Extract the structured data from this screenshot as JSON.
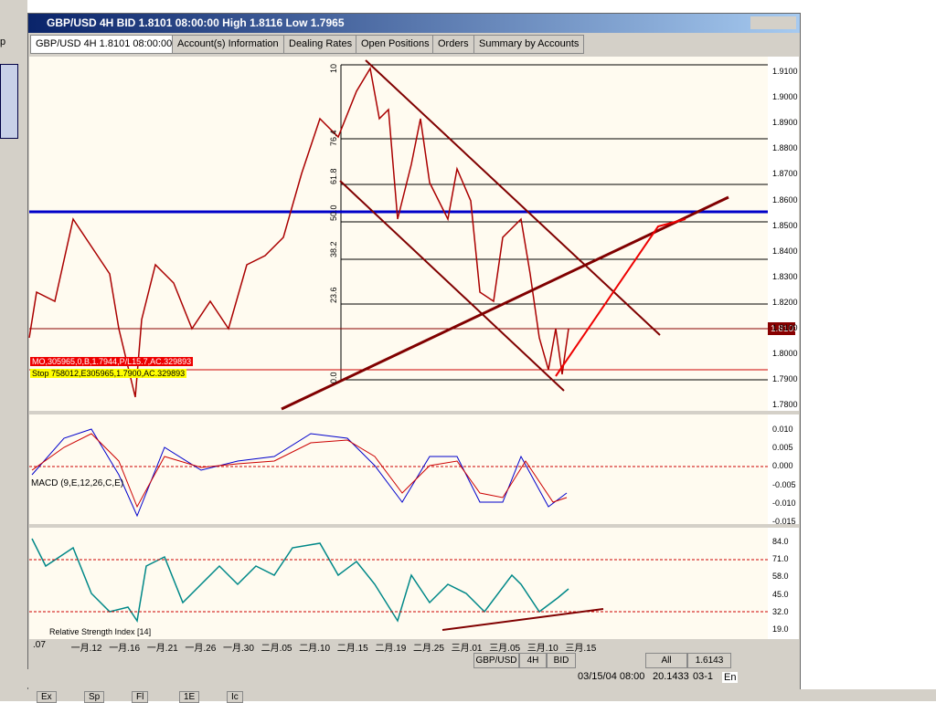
{
  "window": {
    "title": "GBP/USD 4H BID 1.8101 08:00:00 High 1.8116 Low 1.7965"
  },
  "left_panel": {
    "label": "p"
  },
  "tabs": [
    "GBP/USD 4H 1.8101 08:00:00",
    "Account(s) Information",
    "Dealing Rates",
    "Open Positions",
    "Orders",
    "Summary by Accounts"
  ],
  "price_axis": [
    "1.9100",
    "1.9000",
    "1.8900",
    "1.8800",
    "1.8700",
    "1.8600",
    "1.8500",
    "1.8400",
    "1.8300",
    "1.8200",
    "1.8100",
    "1.8000",
    "1.7900",
    "1.7800"
  ],
  "current_price": "1.8101",
  "fib_labels": [
    "10",
    "76.4",
    "61.8",
    "50.0",
    "38.2",
    "23.6",
    "0.0"
  ],
  "order_labels": [
    "MO,305965,0,B,1.7944,P/L15.7,AC.329893",
    "Stop 758012,E305965,1.7900,AC.329893"
  ],
  "macd": {
    "label": "MACD (9,E,12,26,C,E)",
    "axis": [
      "0.010",
      "0.005",
      "0.000",
      "-0.005",
      "-0.010",
      "-0.015"
    ]
  },
  "rsi": {
    "label": "Relative Strength Index [14]",
    "axis": [
      "84.0",
      "71.0",
      "58.0",
      "45.0",
      "32.0",
      "19.0"
    ]
  },
  "date_axis": [
    ".07",
    "一月.12",
    "一月.16",
    "一月.21",
    "一月.26",
    "一月.30",
    "二月.05",
    "二月.10",
    "二月.15",
    "二月.19",
    "二月.25",
    "三月.01",
    "三月.05",
    "三月.10",
    "三月.15"
  ],
  "toolbar": [
    "GBP/USD",
    "4H",
    "BID",
    "All",
    "1.6143"
  ],
  "status": {
    "datetime": "03/15/04 08:00",
    "value": "20.1433",
    "date2": "03-1",
    "lang": "En"
  },
  "taskbar": [
    "Ex",
    "Sp",
    "Fl",
    "1E",
    "Ic"
  ]
}
